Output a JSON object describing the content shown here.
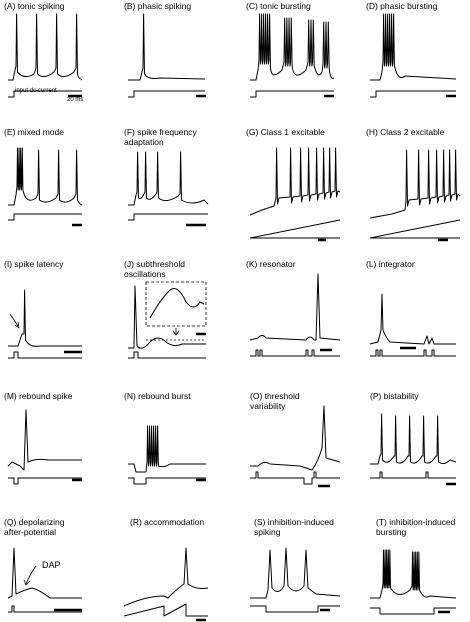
{
  "figure": {
    "panels": [
      {
        "id": "A",
        "title": "(A) tonic spiking"
      },
      {
        "id": "B",
        "title": "(B) phasic spiking"
      },
      {
        "id": "C",
        "title": "(C) tonic bursting"
      },
      {
        "id": "D",
        "title": "(D) phasic bursting"
      },
      {
        "id": "E",
        "title": "(E) mixed mode"
      },
      {
        "id": "F",
        "title": "(F) spike frequency\nadaptation"
      },
      {
        "id": "G",
        "title": "(G) Class 1 excitable"
      },
      {
        "id": "H",
        "title": "(H) Class 2 excitable"
      },
      {
        "id": "I",
        "title": "(I) spike latency"
      },
      {
        "id": "J",
        "title": "(J) subthreshold\noscillations"
      },
      {
        "id": "K",
        "title": "(K) resonator"
      },
      {
        "id": "L",
        "title": "(L) integrator"
      },
      {
        "id": "M",
        "title": "(M) rebound spike"
      },
      {
        "id": "N",
        "title": "(N) rebound burst"
      },
      {
        "id": "O",
        "title": "(O) threshold\nvariability"
      },
      {
        "id": "P",
        "title": "(P) bistability"
      },
      {
        "id": "Q",
        "title": "(Q) depolarizing\nafter-potential"
      },
      {
        "id": "R",
        "title": "(R) accommodation"
      },
      {
        "id": "S",
        "title": "(S) inhibition-induced\nspiking"
      },
      {
        "id": "T",
        "title": "(T) inhibition-induced\nbursting"
      }
    ],
    "annotations": {
      "input_label": "input dc-current",
      "scale_label": "20 ms",
      "dap_label": "DAP"
    }
  }
}
